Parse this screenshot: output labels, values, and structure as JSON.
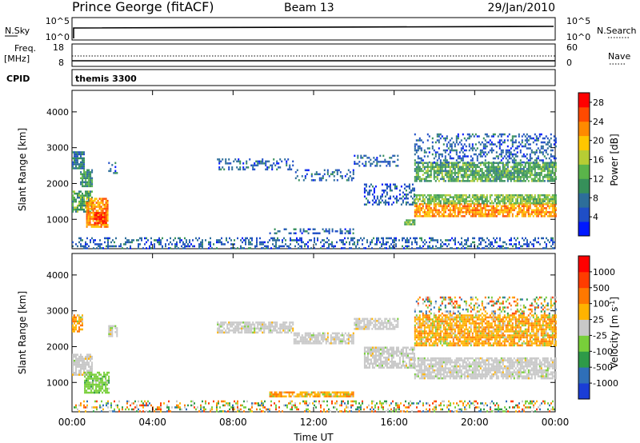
{
  "header": {
    "station": "Prince George (fitACF)",
    "beam": "Beam 13",
    "date": "29/Jan/2010"
  },
  "top_panels": {
    "nsky": {
      "label": "N.Sky",
      "tick_top": "10^5",
      "tick_bottom": "10^0",
      "right_tick_top": "10^5",
      "right_tick_bottom": "10^0",
      "right_label": "N.Search"
    },
    "freq": {
      "label_line1": "Freq.",
      "label_line2": "[MHz]",
      "tick_top": "18",
      "tick_bottom": "8",
      "right_tick_top": "60",
      "right_tick_bottom": "0",
      "right_label": "Nave"
    },
    "cpid": {
      "label": "CPID",
      "mode": "themis 3300"
    }
  },
  "x_axis": {
    "label": "Time UT",
    "ticks": [
      "00:00",
      "04:00",
      "08:00",
      "12:00",
      "16:00",
      "20:00",
      "00:00"
    ]
  },
  "chart_data": [
    {
      "type": "heatmap",
      "quantity": "power",
      "xlabel": "Time UT",
      "ylabel": "Slant Range [km]",
      "xlim_hours": [
        0,
        24
      ],
      "ylim_km": [
        180,
        4600
      ],
      "y_ticks": [
        "1000",
        "2000",
        "3000",
        "4000"
      ],
      "colorbar": {
        "label": "Power [dB]",
        "ticks": [
          "4",
          "8",
          "12",
          "16",
          "20",
          "24",
          "28"
        ],
        "range": [
          0,
          30
        ],
        "colors": [
          "#0018ff",
          "#1f4ec6",
          "#2d6e9a",
          "#36905a",
          "#5ab44a",
          "#b7cd34",
          "#ffc600",
          "#ff8a00",
          "#ff4a00",
          "#ff0000"
        ]
      },
      "regions": [
        {
          "t": [
            0.0,
            0.6
          ],
          "r": [
            2400,
            2900
          ],
          "power": 8
        },
        {
          "t": [
            0.0,
            1.0
          ],
          "r": [
            1200,
            1800
          ],
          "power": 12
        },
        {
          "t": [
            0.7,
            1.8
          ],
          "r": [
            800,
            1600
          ],
          "power": 22
        },
        {
          "t": [
            1.1,
            1.7
          ],
          "r": [
            900,
            1200
          ],
          "power": 28
        },
        {
          "t": [
            0.4,
            1.0
          ],
          "r": [
            1900,
            2400
          ],
          "power": 10
        },
        {
          "t": [
            1.8,
            2.2
          ],
          "r": [
            2300,
            2600
          ],
          "power": 6
        },
        {
          "t": [
            7.2,
            11.0
          ],
          "r": [
            2400,
            2700
          ],
          "power": 6
        },
        {
          "t": [
            11.0,
            14.0
          ],
          "r": [
            2100,
            2400
          ],
          "power": 6
        },
        {
          "t": [
            14.0,
            16.2
          ],
          "r": [
            2500,
            2800
          ],
          "power": 6
        },
        {
          "t": [
            14.5,
            17.0
          ],
          "r": [
            1400,
            2000
          ],
          "power": 6
        },
        {
          "t": [
            16.5,
            17.0
          ],
          "r": [
            850,
            1000
          ],
          "power": 14
        },
        {
          "t": [
            9.8,
            14.0
          ],
          "r": [
            600,
            750
          ],
          "power": 6
        },
        {
          "t": [
            17.0,
            24.0
          ],
          "r": [
            1100,
            1450
          ],
          "power": 22
        },
        {
          "t": [
            17.0,
            24.0
          ],
          "r": [
            1450,
            1700
          ],
          "power": 14
        },
        {
          "t": [
            17.0,
            24.0
          ],
          "r": [
            2050,
            2600
          ],
          "power": 12
        },
        {
          "t": [
            17.0,
            24.0
          ],
          "r": [
            2600,
            3400
          ],
          "power": 6
        },
        {
          "t": [
            0.0,
            24.0
          ],
          "r": [
            200,
            500
          ],
          "power": 6
        }
      ]
    },
    {
      "type": "heatmap",
      "quantity": "velocity",
      "xlabel": "Time UT",
      "ylabel": "Slant Range [km]",
      "xlim_hours": [
        0,
        24
      ],
      "ylim_km": [
        180,
        4600
      ],
      "y_ticks": [
        "1000",
        "2000",
        "3000",
        "4000"
      ],
      "colorbar": {
        "label": "Velocity [m s^-1]",
        "ticks": [
          "1000",
          "500",
          "100",
          "25",
          "-25",
          "-100",
          "-500",
          "-1000"
        ],
        "colors": [
          "#1a3dd6",
          "#2f6fb8",
          "#2e9a48",
          "#78cf3a",
          "#c8c8c8",
          "#ffb300",
          "#ff7800",
          "#ff3c00",
          "#ff0000"
        ]
      },
      "regions": [
        {
          "t": [
            0.0,
            0.5
          ],
          "r": [
            2400,
            2900
          ],
          "v": "-100"
        },
        {
          "t": [
            0.0,
            1.0
          ],
          "r": [
            1200,
            1800
          ],
          "v": "ground"
        },
        {
          "t": [
            0.6,
            1.8
          ],
          "r": [
            700,
            1300
          ],
          "v": "100"
        },
        {
          "t": [
            1.8,
            2.2
          ],
          "r": [
            2300,
            2600
          ],
          "v": "ground"
        },
        {
          "t": [
            7.2,
            11.0
          ],
          "r": [
            2400,
            2700
          ],
          "v": "ground"
        },
        {
          "t": [
            11.0,
            14.0
          ],
          "r": [
            2100,
            2400
          ],
          "v": "ground"
        },
        {
          "t": [
            14.0,
            16.2
          ],
          "r": [
            2500,
            2800
          ],
          "v": "ground"
        },
        {
          "t": [
            14.5,
            17.0
          ],
          "r": [
            1400,
            2000
          ],
          "v": "ground"
        },
        {
          "t": [
            9.8,
            14.0
          ],
          "r": [
            600,
            750
          ],
          "v": "-100"
        },
        {
          "t": [
            17.0,
            24.0
          ],
          "r": [
            1100,
            1700
          ],
          "v": "ground"
        },
        {
          "t": [
            17.0,
            24.0
          ],
          "r": [
            2050,
            2900
          ],
          "v": "-100"
        },
        {
          "t": [
            17.0,
            24.0
          ],
          "r": [
            2900,
            3400
          ],
          "v": "mixed"
        },
        {
          "t": [
            0.0,
            24.0
          ],
          "r": [
            200,
            500
          ],
          "v": "mixed"
        }
      ]
    }
  ]
}
